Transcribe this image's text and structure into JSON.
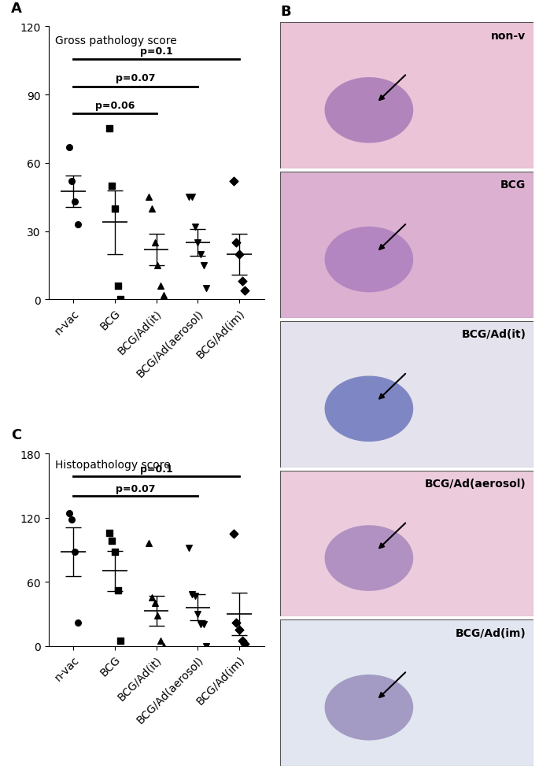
{
  "chart_data": [
    {
      "type": "scatter",
      "panel": "A",
      "title": "Gross pathology score",
      "categories": [
        "n-vac",
        "BCG",
        "BCG/Ad(it)",
        "BCG/Ad(aerosol)",
        "BCG/Ad(im)"
      ],
      "markers": [
        "o",
        "s",
        "^",
        "v",
        "D"
      ],
      "color": "#000000",
      "points": [
        [
          67,
          52,
          43,
          33
        ],
        [
          75,
          50,
          40,
          6,
          0
        ],
        [
          45,
          40,
          25,
          15,
          6,
          2
        ],
        [
          45,
          45,
          32,
          25,
          20,
          15,
          5
        ],
        [
          52,
          25,
          20,
          8,
          4
        ]
      ],
      "means": [
        47.5,
        34,
        22,
        25,
        20
      ],
      "errors": [
        7,
        14,
        7,
        6,
        9
      ],
      "ylim": [
        0,
        120
      ],
      "yticks": [
        0,
        30,
        60,
        90,
        120
      ],
      "annotations": [
        {
          "text": "p=0.1",
          "from": "n-vac",
          "to": "BCG/Ad(im)"
        },
        {
          "text": "p=0.07",
          "from": "n-vac",
          "to": "BCG/Ad(aerosol)"
        },
        {
          "text": "p=0.06",
          "from": "n-vac",
          "to": "BCG/Ad(it)"
        }
      ]
    },
    {
      "type": "scatter",
      "panel": "C",
      "title": "Histopathology score",
      "categories": [
        "n-vac",
        "BCG",
        "BCG/Ad(it)",
        "BCG/Ad(aerosol)",
        "BCG/Ad(im)"
      ],
      "markers": [
        "o",
        "s",
        "^",
        "v",
        "D"
      ],
      "color": "#000000",
      "points": [
        [
          124,
          118,
          88,
          22
        ],
        [
          106,
          98,
          88,
          52,
          5
        ],
        [
          96,
          45,
          40,
          28,
          5,
          0
        ],
        [
          92,
          48,
          47,
          30,
          20,
          20,
          0
        ],
        [
          105,
          22,
          15,
          5,
          2
        ]
      ],
      "means": [
        88,
        70,
        33,
        36,
        30
      ],
      "errors": [
        23,
        19,
        14,
        12,
        20
      ],
      "ylim": [
        0,
        180
      ],
      "yticks": [
        0,
        60,
        120,
        180
      ],
      "annotations": [
        {
          "text": "p=0.1",
          "from": "n-vac",
          "to": "BCG/Ad(im)"
        },
        {
          "text": "p=0.07",
          "from": "n-vac",
          "to": "BCG/Ad(aerosol)"
        }
      ]
    }
  ],
  "images": {
    "panel": "B",
    "labels": [
      "non-v",
      "BCG",
      "BCG/Ad(it)",
      "BCG/Ad(aerosol)",
      "BCG/Ad(im)"
    ]
  }
}
